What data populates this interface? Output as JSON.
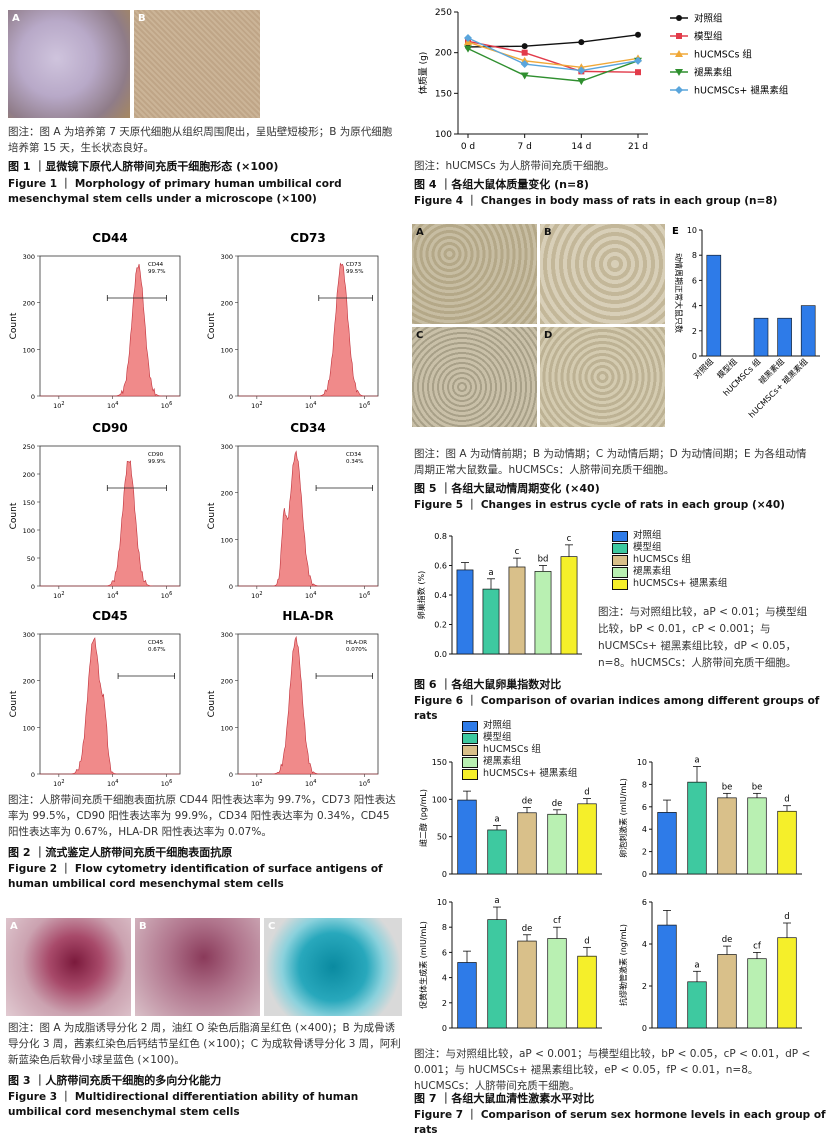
{
  "fig1": {
    "panels": [
      "A",
      "B"
    ],
    "caption": "图注：图 A 为培养第 7 天原代细胞从组织周围爬出，呈贴壁短梭形；B 为原代细胞培养第 15 天，生长状态良好。",
    "title_cn": "图 1 ｜显微镜下原代人脐带间充质干细胞形态 (×100)",
    "title_en": "Figure 1 ｜ Morphology of primary human umbilical cord mesenchymal stem cells under a microscope (×100)"
  },
  "fig3": {
    "panels": [
      "A",
      "B",
      "C"
    ],
    "caption": "图注：图 A 为成脂诱导分化 2 周，油红 O 染色后脂滴呈红色 (×400)；B 为成骨诱导分化 3 周，茜素红染色后钙结节呈红色 (×100)；C 为成软骨诱导分化 3 周，阿利新蓝染色后软骨小球呈蓝色 (×100)。",
    "title_cn": "图 3 ｜人脐带间充质干细胞的多向分化能力",
    "title_en": "Figure 3 ｜ Multidirectional differentiation ability of human umbilical cord mesenchymal stem cells"
  },
  "fig2": {
    "caption": "图注：人脐带间充质干细胞表面抗原 CD44 阳性表达率为 99.7%，CD73 阳性表达率为 99.5%，CD90 阳性表达率为 99.9%，CD34 阳性表达率为 0.34%，CD45 阳性表达率为 0.67%，HLA-DR 阳性表达率为 0.07%。",
    "title_cn": "图 2 ｜流式鉴定人脐带间充质干细胞表面抗原",
    "title_en": "Figure 2 ｜ Flow cytometry identification of surface antigens of human umbilical cord mesenchymal stem cells"
  },
  "fig4": {
    "caption": "图注：hUCMSCs 为人脐带间充质干细胞。",
    "title_cn": "图 4 ｜各组大鼠体质量变化 (n=8)",
    "title_en": "Figure 4 ｜ Changes in body mass of rats in each group (n=8)"
  },
  "fig5": {
    "panels": [
      "A",
      "B",
      "C",
      "D",
      "E"
    ],
    "caption": "图注：图 A 为动情前期；B 为动情期；C 为动情后期；D 为动情间期；E 为各组动情周期正常大鼠数量。hUCMSCs：人脐带间充质干细胞。",
    "title_cn": "图 5 ｜各组大鼠动情周期变化 (×40)",
    "title_en": "Figure 5 ｜ Changes in estrus cycle of rats in each group (×40)"
  },
  "fig6": {
    "legend": [
      "对照组",
      "模型组",
      "hUCMSCs 组",
      "褪黑素组",
      "hUCMSCs+ 褪黑素组"
    ],
    "caption": "图注：与对照组比较，aP < 0.01；与模型组比较，bP < 0.01，cP < 0.001；与 hUCMSCs+ 褪黑素组比较，dP < 0.05，n=8。hUCMSCs：人脐带间充质干细胞。",
    "title_cn": "图 6 ｜各组大鼠卵巢指数对比",
    "title_en": "Figure 6 ｜ Comparison of ovarian indices among different groups of rats"
  },
  "fig7": {
    "legend": [
      "对照组",
      "模型组",
      "hUCMSCs 组",
      "褪黑素组",
      "hUCMSCs+ 褪黑素组"
    ],
    "caption": "图注：与对照组比较，aP < 0.001；与模型组比较，bP < 0.05，cP < 0.01，dP < 0.001；与 hUCMSCs+ 褪黑素组比较，eP < 0.05，fP < 0.01，n=8。hUCMSCs：人脐带间充质干细胞。",
    "title_cn": "图 7 ｜各组大鼠血清性激素水平对比",
    "title_en": "Figure 7 ｜ Comparison of serum sex hormone levels in each group of rats"
  },
  "colors": {
    "control": "#2e7be8",
    "model": "#3ec9a0",
    "hucmsc": "#d9c08a",
    "melatonin": "#b9f0b2",
    "combo": "#f5ef2a",
    "histo": "#f08a8a"
  },
  "chart_data": [
    {
      "id": "fig2-CD44",
      "type": "area",
      "title": "CD44",
      "gate_label": "CD44",
      "gate_value": "99.7%",
      "xlabel": "",
      "ylabel": "Count",
      "ylim": [
        0,
        300
      ],
      "yticks": [
        "0",
        "100",
        "200",
        "300"
      ],
      "xticks": [
        "10^2",
        "10^4",
        "10^6"
      ],
      "peak_x_log": 4.95,
      "peak_y": 280
    },
    {
      "id": "fig2-CD73",
      "type": "area",
      "title": "CD73",
      "gate_label": "CD73",
      "gate_value": "99.5%",
      "xlabel": "",
      "ylabel": "Count",
      "ylim": [
        0,
        300
      ],
      "yticks": [
        "0",
        "100",
        "200",
        "300"
      ],
      "xticks": [
        "10^2",
        "10^4",
        "10^6"
      ],
      "peak_x_log": 5.15,
      "peak_y": 285
    },
    {
      "id": "fig2-CD90",
      "type": "area",
      "title": "CD90",
      "gate_label": "CD90",
      "gate_value": "99.9%",
      "xlabel": "",
      "ylabel": "Count",
      "ylim": [
        0,
        250
      ],
      "yticks": [
        "0",
        "50",
        "100",
        "150",
        "200",
        "250"
      ],
      "xticks": [
        "10^2",
        "10^4",
        "10^6"
      ],
      "peak_x_log": 4.6,
      "peak_y": 225
    },
    {
      "id": "fig2-CD34",
      "type": "area",
      "title": "CD34",
      "gate_label": "CD34",
      "gate_value": "0.34%",
      "xlabel": "",
      "ylabel": "Count",
      "ylim": [
        0,
        300
      ],
      "yticks": [
        "0",
        "100",
        "200",
        "300"
      ],
      "xticks": [
        "10^2",
        "10^4",
        "10^6"
      ],
      "peak_x_log": 3.45,
      "peak_y": 285
    },
    {
      "id": "fig2-CD45",
      "type": "area",
      "title": "CD45",
      "gate_label": "CD45",
      "gate_value": "0.67%",
      "xlabel": "",
      "ylabel": "Count",
      "ylim": [
        0,
        300
      ],
      "yticks": [
        "0",
        "100",
        "200",
        "300"
      ],
      "xticks": [
        "10^2",
        "10^4",
        "10^6"
      ],
      "peak_x_log": 3.3,
      "peak_y": 290
    },
    {
      "id": "fig2-HLA-DR",
      "type": "area",
      "title": "HLA-DR",
      "gate_label": "HLA-DR",
      "gate_value": "0.070%",
      "xlabel": "",
      "ylabel": "Count",
      "ylim": [
        0,
        300
      ],
      "yticks": [
        "0",
        "100",
        "200",
        "300"
      ],
      "xticks": [
        "10^2",
        "10^4",
        "10^6"
      ],
      "peak_x_log": 3.45,
      "peak_y": 290
    },
    {
      "id": "fig4",
      "type": "line",
      "categories": [
        "0 d",
        "7 d",
        "14 d",
        "21 d"
      ],
      "ylabel": "体质量 (g)",
      "ylim": [
        100,
        250
      ],
      "yticks": [
        "100",
        "150",
        "200",
        "250"
      ],
      "legend": "top-right",
      "series": [
        {
          "name": "对照组",
          "values": [
            207,
            208,
            213,
            222
          ],
          "color": "#111111",
          "marker": "circle"
        },
        {
          "name": "模型组",
          "values": [
            214,
            200,
            177,
            176
          ],
          "color": "#e23b4a",
          "marker": "square"
        },
        {
          "name": "hUCMSCs 组",
          "values": [
            213,
            190,
            182,
            193
          ],
          "color": "#f0a838",
          "marker": "triangle"
        },
        {
          "name": "褪黑素组",
          "values": [
            205,
            172,
            165,
            190
          ],
          "color": "#2f8f2f",
          "marker": "triangle-down"
        },
        {
          "name": "hUCMSCs+ 褪黑素组",
          "values": [
            218,
            186,
            178,
            190
          ],
          "color": "#5aa5dc",
          "marker": "diamond"
        }
      ]
    },
    {
      "id": "fig5E",
      "type": "bar",
      "categories": [
        "对照组",
        "模型组",
        "hUCMSCs 组",
        "褪黑素组",
        "hUCMSCs+ 褪黑素组"
      ],
      "values": [
        8,
        0,
        3,
        3,
        4
      ],
      "ylabel": "动情周期正常大鼠只数",
      "ylim": [
        0,
        10
      ],
      "yticks": [
        "0",
        "2",
        "4",
        "6",
        "8",
        "10"
      ]
    },
    {
      "id": "fig6",
      "type": "bar",
      "categories": [
        "对照组",
        "模型组",
        "hUCMSCs 组",
        "褪黑素组",
        "hUCMSCs+ 褪黑素组"
      ],
      "values": [
        0.57,
        0.44,
        0.59,
        0.56,
        0.66
      ],
      "errors": [
        0.05,
        0.07,
        0.06,
        0.04,
        0.08
      ],
      "labels": [
        "",
        "a",
        "c",
        "bd",
        "c"
      ],
      "ylabel": "卵巢指数 (%)",
      "ylim": [
        0,
        0.8
      ],
      "yticks": [
        "0.0",
        "0.2",
        "0.4",
        "0.6",
        "0.8"
      ]
    },
    {
      "id": "fig7-E2",
      "type": "bar",
      "categories": [
        "对照组",
        "模型组",
        "hUCMSCs 组",
        "褪黑素组",
        "hUCMSCs+ 褪黑素组"
      ],
      "values": [
        99,
        59,
        82,
        80,
        94
      ],
      "errors": [
        12,
        6,
        7,
        6,
        7
      ],
      "labels": [
        "",
        "a",
        "de",
        "de",
        "d"
      ],
      "ylabel": "雌二醇 (pg/mL)",
      "ylim": [
        0,
        150
      ],
      "yticks": [
        "0",
        "50",
        "100",
        "150"
      ]
    },
    {
      "id": "fig7-FSH",
      "type": "bar",
      "categories": [
        "对照组",
        "模型组",
        "hUCMSCs 组",
        "褪黑素组",
        "hUCMSCs+ 褪黑素组"
      ],
      "values": [
        5.5,
        8.2,
        6.8,
        6.8,
        5.6
      ],
      "errors": [
        1.1,
        1.4,
        0.4,
        0.4,
        0.5
      ],
      "labels": [
        "",
        "a",
        "be",
        "be",
        "d"
      ],
      "ylabel": "卵泡刺激素 (mIU/mL)",
      "ylim": [
        0,
        10
      ],
      "yticks": [
        "0",
        "2",
        "4",
        "6",
        "8",
        "10"
      ]
    },
    {
      "id": "fig7-LH",
      "type": "bar",
      "categories": [
        "对照组",
        "模型组",
        "hUCMSCs 组",
        "褪黑素组",
        "hUCMSCs+ 褪黑素组"
      ],
      "values": [
        5.2,
        8.6,
        6.9,
        7.1,
        5.7
      ],
      "errors": [
        0.9,
        1.0,
        0.5,
        0.9,
        0.7
      ],
      "labels": [
        "",
        "a",
        "de",
        "cf",
        "d"
      ],
      "ylabel": "促黄体生成素 (mIU/mL)",
      "ylim": [
        0,
        10
      ],
      "yticks": [
        "0",
        "2",
        "4",
        "6",
        "8",
        "10"
      ]
    },
    {
      "id": "fig7-AMH",
      "type": "bar",
      "categories": [
        "对照组",
        "模型组",
        "hUCMSCs 组",
        "褪黑素组",
        "hUCMSCs+ 褪黑素组"
      ],
      "values": [
        4.9,
        2.2,
        3.5,
        3.3,
        4.3
      ],
      "errors": [
        0.7,
        0.5,
        0.4,
        0.3,
        0.7
      ],
      "labels": [
        "",
        "a",
        "de",
        "cf",
        "d"
      ],
      "ylabel": "抗缪勒管激素 (ng/mL)",
      "ylim": [
        0,
        6
      ],
      "yticks": [
        "0",
        "2",
        "4",
        "6"
      ]
    }
  ]
}
